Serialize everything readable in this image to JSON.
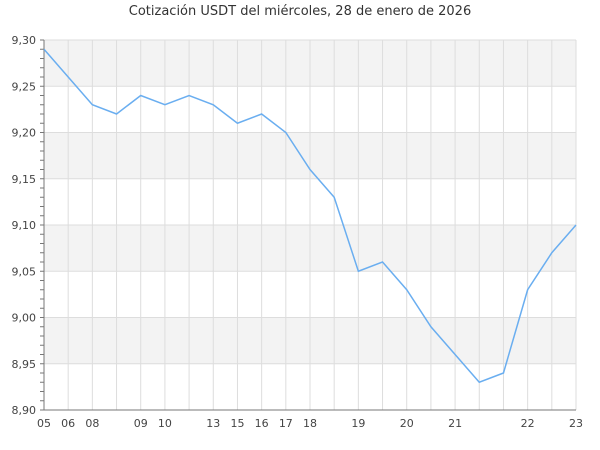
{
  "chart_data": {
    "type": "line",
    "title": "Cotización USDT del miércoles, 28 de enero de 2026",
    "xlabel": "",
    "ylabel": "",
    "x_tick_labels": [
      "05",
      "06",
      "08",
      "",
      "09",
      "10",
      "",
      "13",
      "15",
      "16",
      "17",
      "18",
      "",
      "19",
      "",
      "20",
      "",
      "21",
      "",
      "",
      "22",
      "",
      "23"
    ],
    "series": [
      {
        "values": [
          9.29,
          9.26,
          9.23,
          9.22,
          9.24,
          9.23,
          9.24,
          9.23,
          9.21,
          9.22,
          9.2,
          9.16,
          9.13,
          9.05,
          9.06,
          9.03,
          8.99,
          8.96,
          8.93,
          8.94,
          9.03,
          9.07,
          9.1
        ]
      }
    ],
    "ylim": [
      8.9,
      9.3
    ],
    "y_ticks": [
      "8,90",
      "8,95",
      "9,00",
      "9,05",
      "9,10",
      "9,15",
      "9,20",
      "9,25",
      "9,30"
    ],
    "grid": true,
    "alternating_bands": true,
    "colors": {
      "line": "#6aaef0",
      "band": "#f3f3f3",
      "grid": "#dddddd",
      "axis": "#777777"
    }
  }
}
